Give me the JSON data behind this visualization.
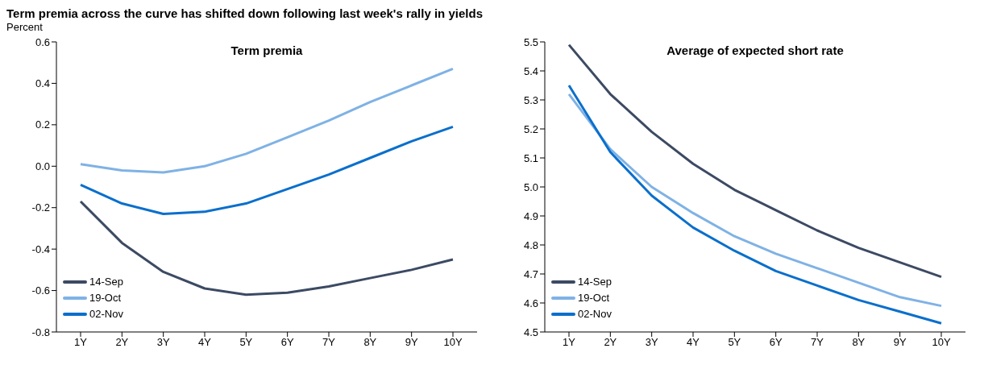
{
  "chart_data": [
    {
      "type": "line",
      "title": "Term premia",
      "ylabel": "Percent",
      "annotations": [
        "Term premia across the curve has shifted down following last week's rally in yields"
      ],
      "categories": [
        "1Y",
        "2Y",
        "3Y",
        "4Y",
        "5Y",
        "6Y",
        "7Y",
        "8Y",
        "9Y",
        "10Y"
      ],
      "ylim": [
        -0.8,
        0.6
      ],
      "yticks": [
        {
          "value": -0.8,
          "label": "-0.8"
        },
        {
          "value": -0.6,
          "label": "-0.6"
        },
        {
          "value": -0.4,
          "label": "-0.4"
        },
        {
          "value": -0.2,
          "label": "-0.2"
        },
        {
          "value": 0,
          "label": "0.0"
        },
        {
          "value": 0.2,
          "label": "0.2"
        },
        {
          "value": 0.4,
          "label": "0.4"
        },
        {
          "value": 0.6,
          "label": "0.6"
        }
      ],
      "grid": false,
      "legend": "bottom left",
      "marker": "none",
      "line_style": "solid",
      "series": [
        {
          "name": "14-Sep",
          "color": "#3c4a63",
          "values": [
            -0.17,
            -0.37,
            -0.51,
            -0.59,
            -0.62,
            -0.61,
            -0.58,
            -0.54,
            -0.5,
            -0.45
          ]
        },
        {
          "name": "19-Oct",
          "color": "#7fb2e5",
          "values": [
            0.01,
            -0.02,
            -0.03,
            0.0,
            0.06,
            0.14,
            0.22,
            0.31,
            0.39,
            0.47
          ]
        },
        {
          "name": "02-Nov",
          "color": "#0a6fcc",
          "values": [
            -0.09,
            -0.18,
            -0.23,
            -0.22,
            -0.18,
            -0.11,
            -0.04,
            0.04,
            0.12,
            0.19
          ]
        }
      ]
    },
    {
      "type": "line",
      "title": "Average of expected short rate",
      "categories": [
        "1Y",
        "2Y",
        "3Y",
        "4Y",
        "5Y",
        "6Y",
        "7Y",
        "8Y",
        "9Y",
        "10Y"
      ],
      "ylim": [
        4.5,
        5.5
      ],
      "yticks": [
        {
          "value": 4.5,
          "label": "4.5"
        },
        {
          "value": 4.6,
          "label": "4.6"
        },
        {
          "value": 4.7,
          "label": "4.7"
        },
        {
          "value": 4.8,
          "label": "4.8"
        },
        {
          "value": 4.9,
          "label": "4.9"
        },
        {
          "value": 5.0,
          "label": "5.0"
        },
        {
          "value": 5.1,
          "label": "5.1"
        },
        {
          "value": 5.2,
          "label": "5.2"
        },
        {
          "value": 5.3,
          "label": "5.3"
        },
        {
          "value": 5.4,
          "label": "5.4"
        },
        {
          "value": 5.5,
          "label": "5.5"
        }
      ],
      "grid": false,
      "legend": "bottom left",
      "marker": "none",
      "line_style": "solid",
      "series": [
        {
          "name": "14-Sep",
          "color": "#3c4a63",
          "values": [
            5.49,
            5.32,
            5.19,
            5.08,
            4.99,
            4.92,
            4.85,
            4.79,
            4.74,
            4.69
          ]
        },
        {
          "name": "19-Oct",
          "color": "#7fb2e5",
          "values": [
            5.32,
            5.13,
            5.0,
            4.91,
            4.83,
            4.77,
            4.72,
            4.67,
            4.62,
            4.59
          ]
        },
        {
          "name": "02-Nov",
          "color": "#0a6fcc",
          "values": [
            5.35,
            5.12,
            4.97,
            4.86,
            4.78,
            4.71,
            4.66,
            4.61,
            4.57,
            4.53
          ]
        }
      ]
    }
  ]
}
